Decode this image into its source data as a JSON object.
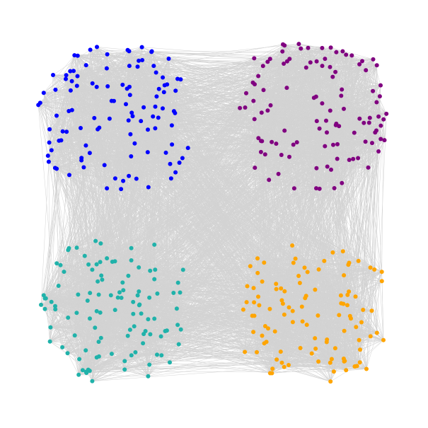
{
  "background": "#ffffff",
  "edge_color": "#d3d3d3",
  "communities": [
    {
      "name": "top-left",
      "color": "#0000ff",
      "node_count": 110
    },
    {
      "name": "top-right",
      "color": "#800080",
      "node_count": 110
    },
    {
      "name": "bottom-left",
      "color": "#20b2aa",
      "node_count": 110
    },
    {
      "name": "bottom-right",
      "color": "#ffa500",
      "node_count": 110
    }
  ]
}
